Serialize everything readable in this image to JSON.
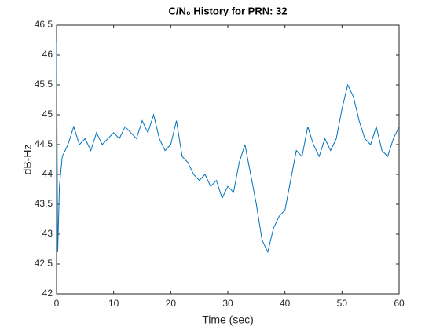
{
  "chart_data": {
    "type": "line",
    "title": "C/N₀ History for PRN: 32",
    "xlabel": "Time (sec)",
    "ylabel": "dB-Hz",
    "x": [
      0,
      0.2,
      0.5,
      1,
      2,
      3,
      4,
      5,
      6,
      7,
      8,
      9,
      10,
      11,
      12,
      13,
      14,
      15,
      16,
      17,
      18,
      19,
      20,
      21,
      22,
      23,
      24,
      25,
      26,
      27,
      28,
      29,
      30,
      31,
      32,
      33,
      34,
      35,
      36,
      37,
      38,
      39,
      40,
      41,
      42,
      43,
      44,
      45,
      46,
      47,
      48,
      49,
      50,
      51,
      52,
      53,
      54,
      55,
      56,
      57,
      58,
      59,
      60
    ],
    "series": [
      {
        "name": "C/N0",
        "color": "#0072bd",
        "values": [
          46.2,
          42.7,
          43.8,
          44.3,
          44.5,
          44.8,
          44.5,
          44.6,
          44.4,
          44.7,
          44.5,
          44.6,
          44.7,
          44.6,
          44.8,
          44.7,
          44.6,
          44.9,
          44.7,
          45.0,
          44.6,
          44.4,
          44.5,
          44.9,
          44.3,
          44.2,
          44.0,
          43.9,
          44.0,
          43.8,
          43.9,
          43.6,
          43.8,
          43.7,
          44.2,
          44.5,
          44.0,
          43.5,
          42.9,
          42.7,
          43.1,
          43.3,
          43.4,
          43.9,
          44.4,
          44.3,
          44.8,
          44.5,
          44.3,
          44.6,
          44.4,
          44.6,
          45.1,
          45.5,
          45.3,
          44.9,
          44.6,
          44.5,
          44.8,
          44.4,
          44.3,
          44.6,
          44.8
        ]
      }
    ],
    "xlim": [
      0,
      60
    ],
    "xticks": [
      0,
      10,
      20,
      30,
      40,
      50,
      60
    ],
    "ylim": [
      42,
      46.5
    ],
    "yticks": [
      42,
      42.5,
      43,
      43.5,
      44,
      44.5,
      45,
      45.5,
      46,
      46.5
    ],
    "grid": false
  }
}
